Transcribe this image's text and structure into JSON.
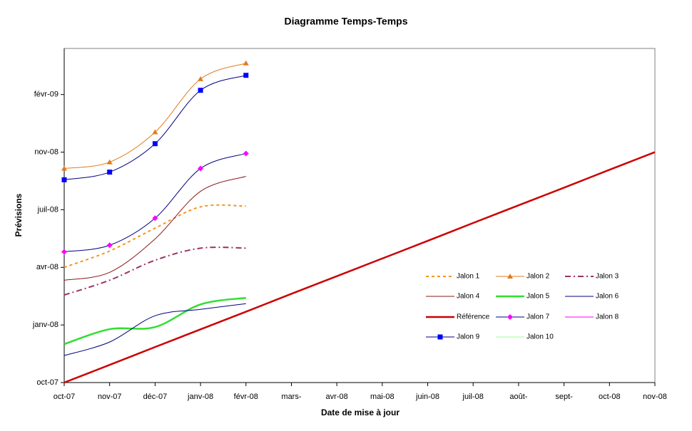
{
  "chart_data": {
    "type": "line",
    "title": "Diagramme Temps-Temps",
    "xlabel": "Date de mise à jour",
    "ylabel": "Prévisions",
    "categories": [
      "oct-07",
      "nov-07",
      "déc-07",
      "janv-08",
      "févr-08",
      "mars-",
      "avr-08",
      "mai-08",
      "juin-08",
      "juil-08",
      "août-",
      "sept-",
      "oct-08",
      "nov-08"
    ],
    "ylim": [
      0,
      17.4
    ],
    "yticks": [
      {
        "value": 0,
        "label": "oct-07"
      },
      {
        "value": 3,
        "label": "janv-08"
      },
      {
        "value": 6,
        "label": "avr-08"
      },
      {
        "value": 9,
        "label": "juil-08"
      },
      {
        "value": 12,
        "label": "nov-08"
      },
      {
        "value": 15,
        "label": "févr-09"
      }
    ],
    "series": [
      {
        "name": "Jalon 1",
        "color": "#f7941d",
        "dash": "4,4",
        "width": 2,
        "values": [
          6.0,
          6.85,
          8.04,
          9.15,
          9.19,
          null,
          null,
          null,
          null,
          null,
          null,
          null,
          null,
          null
        ]
      },
      {
        "name": "Jalon 2",
        "color": "#e07b20",
        "marker": "triangle",
        "marker_color": "#e07b20",
        "width": 1,
        "values": [
          11.15,
          11.48,
          13.04,
          15.81,
          16.63,
          null,
          null,
          null,
          null,
          null,
          null,
          null,
          null,
          null
        ]
      },
      {
        "name": "Jalon 3",
        "color": "#993366",
        "dash": "8,4,2,4",
        "width": 2,
        "values": [
          4.56,
          5.33,
          6.37,
          7.0,
          7.0,
          null,
          null,
          null,
          null,
          null,
          null,
          null,
          null,
          null
        ]
      },
      {
        "name": "Jalon 4",
        "color": "#8b1a1a",
        "width": 1,
        "values": [
          5.33,
          5.74,
          7.48,
          9.96,
          10.74,
          null,
          null,
          null,
          null,
          null,
          null,
          null,
          null,
          null
        ]
      },
      {
        "name": "Jalon 5",
        "color": "#33dd33",
        "width": 2.5,
        "values": [
          2.0,
          2.78,
          2.89,
          4.07,
          4.41,
          null,
          null,
          null,
          null,
          null,
          null,
          null,
          null,
          null
        ]
      },
      {
        "name": "Jalon 6",
        "color": "#000080",
        "width": 1,
        "values": [
          1.41,
          2.11,
          3.48,
          3.81,
          4.11,
          null,
          null,
          null,
          null,
          null,
          null,
          null,
          null,
          null
        ]
      },
      {
        "name": "Référence",
        "color": "#cc0000",
        "width": 2.5,
        "values": [
          0,
          0.92,
          1.85,
          2.77,
          3.69,
          4.62,
          5.54,
          6.46,
          7.38,
          8.31,
          9.23,
          10.15,
          11.08,
          12
        ]
      },
      {
        "name": "Jalon 7",
        "color": "#000080",
        "marker": "diamond",
        "marker_color": "#ff00ff",
        "width": 1,
        "values": [
          6.81,
          7.15,
          8.56,
          11.15,
          11.93,
          null,
          null,
          null,
          null,
          null,
          null,
          null,
          null,
          null
        ]
      },
      {
        "name": "Jalon 8",
        "color": "#ff00ff",
        "width": 1,
        "values": [
          null,
          null,
          null,
          null,
          null,
          null,
          null,
          null,
          null,
          null,
          null,
          null,
          null,
          null
        ]
      },
      {
        "name": "Jalon 9",
        "color": "#000080",
        "marker": "square",
        "marker_color": "#0000ff",
        "width": 1,
        "values": [
          10.56,
          10.96,
          12.44,
          15.22,
          16.0,
          null,
          null,
          null,
          null,
          null,
          null,
          null,
          null,
          null
        ]
      },
      {
        "name": "Jalon 10",
        "color": "#99ff99",
        "width": 1,
        "values": [
          null,
          null,
          null,
          null,
          null,
          null,
          null,
          null,
          null,
          null,
          null,
          null,
          null,
          null
        ]
      }
    ]
  }
}
